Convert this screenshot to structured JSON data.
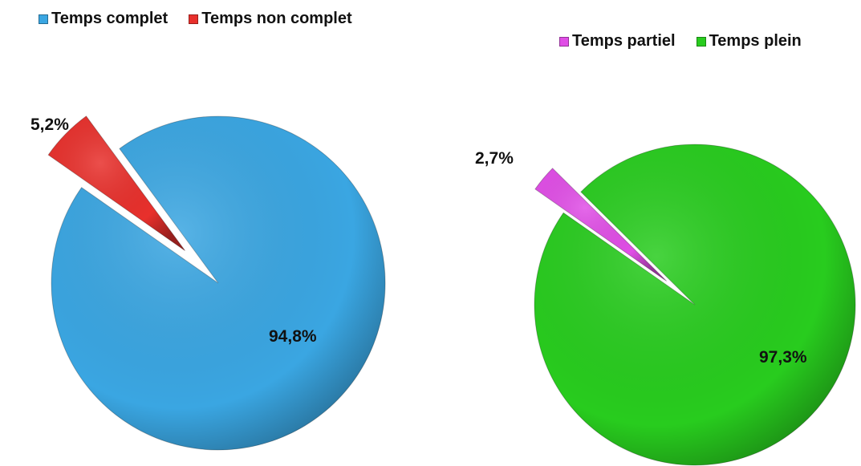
{
  "chart_data": [
    {
      "type": "pie",
      "series": [
        {
          "name": "Temps complet",
          "value": 94.8,
          "label": "94,8%",
          "color": "#3aa6e2",
          "exploded": false
        },
        {
          "name": "Temps non complet",
          "value": 5.2,
          "label": "5,2%",
          "color": "#e8302c",
          "exploded": true
        }
      ],
      "legend": "top-left"
    },
    {
      "type": "pie",
      "series": [
        {
          "name": "Temps partiel",
          "value": 2.7,
          "label": "2,7%",
          "color": "#e04ee6",
          "exploded": true
        },
        {
          "name": "Temps plein",
          "value": 97.3,
          "label": "97,3%",
          "color": "#28cc1e",
          "exploded": false
        }
      ],
      "legend": "top-right"
    }
  ]
}
